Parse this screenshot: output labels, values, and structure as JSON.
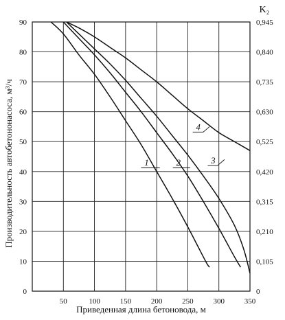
{
  "chart_data": {
    "type": "line",
    "title": "",
    "xlabel": "Приведенная длина бетоновода, м",
    "ylabel": "Производительность автобетононасоса, м³/ч",
    "y2label": "K₂",
    "xlim": [
      0,
      350
    ],
    "ylim": [
      0,
      90
    ],
    "x_ticks": [
      "50",
      "100",
      "150",
      "200",
      "250",
      "300",
      "350"
    ],
    "x_tick_values": [
      50,
      100,
      150,
      200,
      250,
      300,
      350
    ],
    "y_ticks": [
      "0",
      "10",
      "20",
      "30",
      "40",
      "50",
      "60",
      "70",
      "80",
      "90"
    ],
    "y_tick_values": [
      0,
      10,
      20,
      30,
      40,
      50,
      60,
      70,
      80,
      90
    ],
    "y2_ticks": [
      "0",
      "0,105",
      "0,210",
      "0,315",
      "0,420",
      "0,525",
      "0,630",
      "0,735",
      "0,840",
      "0,945"
    ],
    "grid": true,
    "series": [
      {
        "name": "1",
        "x": [
          30,
          50,
          75,
          100,
          125,
          150,
          175,
          200,
          225,
          250,
          265,
          280,
          285
        ],
        "y": [
          90,
          86,
          79,
          72.5,
          65,
          57,
          49,
          40,
          31,
          21.5,
          15.5,
          9.5,
          8
        ]
      },
      {
        "name": "2",
        "x": [
          50,
          75,
          100,
          125,
          150,
          175,
          200,
          225,
          250,
          275,
          300,
          325,
          335
        ],
        "y": [
          90,
          84.5,
          79,
          73,
          66.5,
          60,
          53,
          46,
          38.5,
          30,
          21,
          11.5,
          8
        ]
      },
      {
        "name": "3",
        "x": [
          55,
          75,
          100,
          125,
          150,
          175,
          200,
          225,
          250,
          275,
          300,
          325,
          340,
          350
        ],
        "y": [
          90,
          86,
          81,
          76,
          70.5,
          64.5,
          58.5,
          52,
          45.5,
          38.5,
          31,
          22,
          14,
          6
        ]
      },
      {
        "name": "4",
        "x": [
          55,
          75,
          100,
          125,
          150,
          175,
          200,
          225,
          250,
          275,
          300,
          325,
          350
        ],
        "y": [
          90,
          88,
          85,
          81.5,
          78,
          74,
          70,
          65.5,
          61,
          57,
          53,
          50,
          47
        ]
      }
    ],
    "curve_labels": [
      {
        "text": "1",
        "x": 190,
        "y": 40,
        "tx": 175,
        "ty": 41.5,
        "anchor_x": 190,
        "anchor_y": 40,
        "tick_x": 205,
        "tick_y": 40
      },
      {
        "text": "2",
        "x": 240,
        "y": 41,
        "tx": 225,
        "ty": 41,
        "anchor_x": 240,
        "anchor_y": 41,
        "tick_x": 258,
        "tick_y": 41
      },
      {
        "text": "3",
        "x": 294,
        "y": 42,
        "tx": 300,
        "ty": 42,
        "anchor_x": 313,
        "anchor_y": 43,
        "tick_x": 300,
        "tick_y": 43
      },
      {
        "text": "4",
        "x": 265,
        "y": 53,
        "tx": 268,
        "ty": 53,
        "anchor_x": 268,
        "anchor_y": 52,
        "tick_x": 283,
        "tick_y": 52
      }
    ]
  }
}
